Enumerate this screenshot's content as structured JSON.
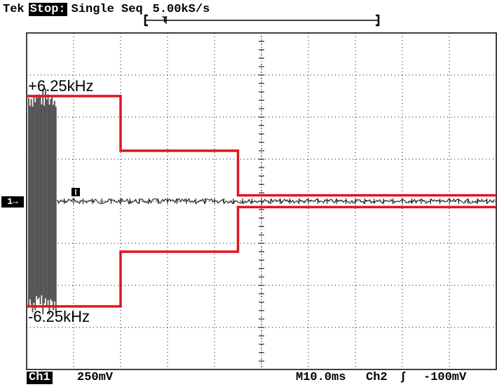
{
  "header": {
    "brand": "Tek",
    "acquisition_state": "Stop:",
    "acquisition_mode": "Single Seq",
    "sample_rate": "5.00kS/s"
  },
  "record_position": {
    "trigger_marker": "T"
  },
  "channel_marker": {
    "label": "1→"
  },
  "annotations": {
    "upper_limit": "+6.25kHz",
    "lower_limit": "-6.25kHz"
  },
  "footer": {
    "channel_label": "Ch1",
    "vertical_scale": "250mV",
    "timebase": "M10.0ms",
    "trigger_source": "Ch2",
    "trigger_slope_symbol": "ʃ",
    "trigger_level": "-100mV"
  },
  "colors": {
    "grid": "#000000",
    "trace": "#111111",
    "envelope": "#e0161f",
    "background": "#ffffff"
  },
  "icons": {
    "trigger_slope": "rising-edge-icon",
    "record_bracket": "record-window-bracket-icon"
  },
  "chart_data": {
    "type": "line",
    "title": "",
    "xlabel": "",
    "ylabel": "",
    "grid": true,
    "horizontal_divisions": 10,
    "vertical_divisions": 8,
    "envelope": {
      "unit": "kHz",
      "segments": [
        {
          "t_div": [
            0.0,
            2.0
          ],
          "upper": 6.25,
          "lower": -6.25
        },
        {
          "t_div": [
            2.0,
            4.5
          ],
          "upper": 3.0,
          "lower": -3.0
        },
        {
          "t_div": [
            4.5,
            10.0
          ],
          "upper": 0.35,
          "lower": -0.35
        }
      ]
    },
    "signal": {
      "burst_end_div": 1.0,
      "burst_amplitude_div": 2.7,
      "settled_noise_div": 0.05
    }
  }
}
